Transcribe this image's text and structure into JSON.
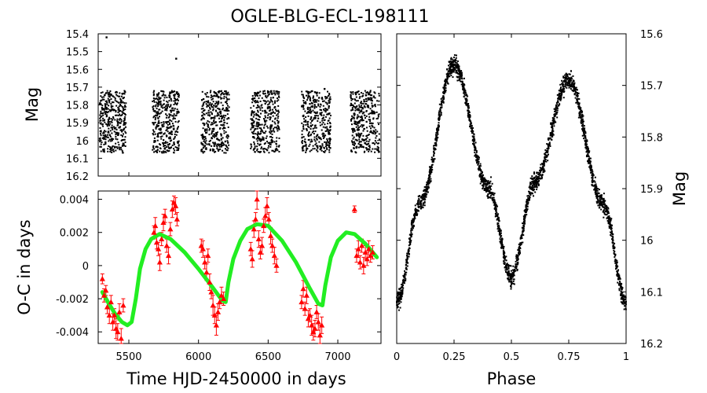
{
  "title": "OGLE-BLG-ECL-198111",
  "colors": {
    "photometry": "#000000",
    "oc_points": "#ff0000",
    "oc_model": "#22ee22",
    "frame": "#000000"
  },
  "chart_data": [
    {
      "type": "scatter",
      "id": "light_curve_time",
      "xlabel": "",
      "ylabel": "Mag",
      "xlim": [
        5280,
        7310
      ],
      "ylim": [
        16.2,
        15.4
      ],
      "y_inverted": true,
      "x_tick_labels": [],
      "y_tick_labels": [
        "15.4",
        "15.5",
        "15.6",
        "15.7",
        "15.8",
        "15.9",
        "16",
        "16.1",
        "16.2"
      ],
      "grid": false,
      "marker": "small black dots",
      "seasons": [
        {
          "start": 5290,
          "end": 5480
        },
        {
          "start": 5670,
          "end": 5860
        },
        {
          "start": 6020,
          "end": 6220
        },
        {
          "start": 6375,
          "end": 6580
        },
        {
          "start": 6740,
          "end": 6950
        },
        {
          "start": 7090,
          "end": 7300
        }
      ],
      "magnitude_range": [
        15.72,
        16.07
      ],
      "outliers": [
        {
          "x": 5340,
          "y": 15.42
        },
        {
          "x": 5840,
          "y": 15.54
        },
        {
          "x": 6395,
          "y": 15.98
        },
        {
          "x": 6905,
          "y": 15.71
        }
      ]
    },
    {
      "type": "scatter",
      "id": "o_minus_c",
      "xlabel": "Time HJD-2450000 in days",
      "ylabel": "O-C in days",
      "xlim": [
        5280,
        7310
      ],
      "ylim": [
        -0.0047,
        0.0045
      ],
      "x_tick_labels": [
        "5500",
        "6000",
        "6500",
        "7000"
      ],
      "y_tick_labels": [
        "0.004",
        "0.002",
        "0",
        "-0.002",
        "-0.004"
      ],
      "grid": false,
      "series": [
        {
          "style": "red triangles with error bars",
          "points": [
            {
              "x": 5310,
              "y": -0.0008,
              "err": 0.0003
            },
            {
              "x": 5322,
              "y": -0.0018,
              "err": 0.0004
            },
            {
              "x": 5335,
              "y": -0.0015,
              "err": 0.0003
            },
            {
              "x": 5345,
              "y": -0.0025,
              "err": 0.0004
            },
            {
              "x": 5360,
              "y": -0.003,
              "err": 0.0005
            },
            {
              "x": 5372,
              "y": -0.0022,
              "err": 0.0004
            },
            {
              "x": 5385,
              "y": -0.0034,
              "err": 0.0005
            },
            {
              "x": 5396,
              "y": -0.003,
              "err": 0.0004
            },
            {
              "x": 5408,
              "y": -0.0038,
              "err": 0.0006
            },
            {
              "x": 5420,
              "y": -0.004,
              "err": 0.0005
            },
            {
              "x": 5432,
              "y": -0.0028,
              "err": 0.0005
            },
            {
              "x": 5445,
              "y": -0.0044,
              "err": 0.0006
            },
            {
              "x": 5460,
              "y": -0.0024,
              "err": 0.0004
            },
            {
              "x": 5680,
              "y": 0.002,
              "err": 0.0004
            },
            {
              "x": 5690,
              "y": 0.0024,
              "err": 0.0005
            },
            {
              "x": 5700,
              "y": 0.0014,
              "err": 0.0004
            },
            {
              "x": 5712,
              "y": 0.001,
              "err": 0.0004
            },
            {
              "x": 5722,
              "y": 0.0002,
              "err": 0.0005
            },
            {
              "x": 5735,
              "y": 0.0016,
              "err": 0.0004
            },
            {
              "x": 5748,
              "y": 0.0026,
              "err": 0.0005
            },
            {
              "x": 5760,
              "y": 0.003,
              "err": 0.0004
            },
            {
              "x": 5772,
              "y": 0.0012,
              "err": 0.0004
            },
            {
              "x": 5785,
              "y": 0.0006,
              "err": 0.0005
            },
            {
              "x": 5798,
              "y": 0.0022,
              "err": 0.0004
            },
            {
              "x": 5812,
              "y": 0.0034,
              "err": 0.0005
            },
            {
              "x": 5824,
              "y": 0.0038,
              "err": 0.0004
            },
            {
              "x": 5836,
              "y": 0.0036,
              "err": 0.0005
            },
            {
              "x": 5846,
              "y": 0.0028,
              "err": 0.0004
            },
            {
              "x": 6020,
              "y": 0.0012,
              "err": 0.0004
            },
            {
              "x": 6032,
              "y": 0.001,
              "err": 0.0005
            },
            {
              "x": 6045,
              "y": 0.0002,
              "err": 0.0004
            },
            {
              "x": 6058,
              "y": -0.0004,
              "err": 0.0005
            },
            {
              "x": 6068,
              "y": 0.0006,
              "err": 0.0004
            },
            {
              "x": 6080,
              "y": -0.001,
              "err": 0.0005
            },
            {
              "x": 6092,
              "y": -0.0016,
              "err": 0.0004
            },
            {
              "x": 6104,
              "y": -0.0024,
              "err": 0.0006
            },
            {
              "x": 6116,
              "y": -0.003,
              "err": 0.0005
            },
            {
              "x": 6128,
              "y": -0.0036,
              "err": 0.0006
            },
            {
              "x": 6140,
              "y": -0.0028,
              "err": 0.0005
            },
            {
              "x": 6152,
              "y": -0.0022,
              "err": 0.0004
            },
            {
              "x": 6165,
              "y": -0.0018,
              "err": 0.0005
            },
            {
              "x": 6180,
              "y": -0.002,
              "err": 0.0004
            },
            {
              "x": 6375,
              "y": 0.001,
              "err": 0.0004
            },
            {
              "x": 6386,
              "y": 0.0004,
              "err": 0.0005
            },
            {
              "x": 6398,
              "y": 0.0022,
              "err": 0.0005
            },
            {
              "x": 6410,
              "y": 0.0028,
              "err": 0.0004
            },
            {
              "x": 6420,
              "y": 0.004,
              "err": 0.0006
            },
            {
              "x": 6432,
              "y": 0.0016,
              "err": 0.0005
            },
            {
              "x": 6444,
              "y": 0.0008,
              "err": 0.0004
            },
            {
              "x": 6456,
              "y": 0.0012,
              "err": 0.0005
            },
            {
              "x": 6468,
              "y": 0.0024,
              "err": 0.0004
            },
            {
              "x": 6480,
              "y": 0.003,
              "err": 0.0005
            },
            {
              "x": 6492,
              "y": 0.0036,
              "err": 0.0005
            },
            {
              "x": 6505,
              "y": 0.0028,
              "err": 0.0004
            },
            {
              "x": 6518,
              "y": 0.0018,
              "err": 0.0005
            },
            {
              "x": 6530,
              "y": 0.0012,
              "err": 0.0004
            },
            {
              "x": 6545,
              "y": 0.0006,
              "err": 0.0005
            },
            {
              "x": 6560,
              "y": 0.0,
              "err": 0.0004
            },
            {
              "x": 6740,
              "y": -0.0022,
              "err": 0.0004
            },
            {
              "x": 6752,
              "y": -0.0014,
              "err": 0.0005
            },
            {
              "x": 6764,
              "y": -0.0026,
              "err": 0.0004
            },
            {
              "x": 6776,
              "y": -0.0018,
              "err": 0.0005
            },
            {
              "x": 6788,
              "y": -0.0032,
              "err": 0.0005
            },
            {
              "x": 6800,
              "y": -0.003,
              "err": 0.0004
            },
            {
              "x": 6812,
              "y": -0.0036,
              "err": 0.0006
            },
            {
              "x": 6824,
              "y": -0.004,
              "err": 0.0005
            },
            {
              "x": 6836,
              "y": -0.0038,
              "err": 0.0005
            },
            {
              "x": 6848,
              "y": -0.0028,
              "err": 0.0004
            },
            {
              "x": 6860,
              "y": -0.0034,
              "err": 0.0005
            },
            {
              "x": 6872,
              "y": -0.0042,
              "err": 0.0006
            },
            {
              "x": 6885,
              "y": -0.0036,
              "err": 0.0005
            },
            {
              "x": 7120,
              "y": 0.0034,
              "err": 0.0002
            },
            {
              "x": 7135,
              "y": 0.0006,
              "err": 0.0004
            },
            {
              "x": 7148,
              "y": 0.001,
              "err": 0.0005
            },
            {
              "x": 7160,
              "y": 0.0002,
              "err": 0.0004
            },
            {
              "x": 7172,
              "y": 0.0012,
              "err": 0.0004
            },
            {
              "x": 7185,
              "y": 0.0,
              "err": 0.0005
            },
            {
              "x": 7198,
              "y": 0.0008,
              "err": 0.0004
            },
            {
              "x": 7210,
              "y": 0.0004,
              "err": 0.0004
            },
            {
              "x": 7222,
              "y": 0.001,
              "err": 0.0005
            },
            {
              "x": 7235,
              "y": 0.0006,
              "err": 0.0004
            },
            {
              "x": 7250,
              "y": 0.0008,
              "err": 0.0004
            }
          ]
        },
        {
          "style": "green model curve (light-travel-time orbit)",
          "points": [
            {
              "x": 5310,
              "y": -0.0016
            },
            {
              "x": 5350,
              "y": -0.0022
            },
            {
              "x": 5400,
              "y": -0.0029
            },
            {
              "x": 5450,
              "y": -0.0034
            },
            {
              "x": 5490,
              "y": -0.0036
            },
            {
              "x": 5520,
              "y": -0.0034
            },
            {
              "x": 5550,
              "y": -0.002
            },
            {
              "x": 5580,
              "y": -0.0002
            },
            {
              "x": 5620,
              "y": 0.001
            },
            {
              "x": 5660,
              "y": 0.0016
            },
            {
              "x": 5720,
              "y": 0.0019
            },
            {
              "x": 5800,
              "y": 0.0016
            },
            {
              "x": 5900,
              "y": 0.0008
            },
            {
              "x": 6000,
              "y": -0.0002
            },
            {
              "x": 6100,
              "y": -0.0013
            },
            {
              "x": 6170,
              "y": -0.0021
            },
            {
              "x": 6195,
              "y": -0.0022
            },
            {
              "x": 6215,
              "y": -0.001
            },
            {
              "x": 6250,
              "y": 0.0004
            },
            {
              "x": 6300,
              "y": 0.0015
            },
            {
              "x": 6350,
              "y": 0.0022
            },
            {
              "x": 6420,
              "y": 0.0025
            },
            {
              "x": 6500,
              "y": 0.0024
            },
            {
              "x": 6600,
              "y": 0.0015
            },
            {
              "x": 6700,
              "y": 0.0002
            },
            {
              "x": 6800,
              "y": -0.0014
            },
            {
              "x": 6860,
              "y": -0.0023
            },
            {
              "x": 6890,
              "y": -0.0024
            },
            {
              "x": 6910,
              "y": -0.0012
            },
            {
              "x": 6950,
              "y": 0.0005
            },
            {
              "x": 7000,
              "y": 0.0015
            },
            {
              "x": 7060,
              "y": 0.002
            },
            {
              "x": 7120,
              "y": 0.0019
            },
            {
              "x": 7200,
              "y": 0.0013
            },
            {
              "x": 7280,
              "y": 0.0005
            }
          ]
        }
      ]
    },
    {
      "type": "scatter",
      "id": "phased_light_curve",
      "xlabel": "Phase",
      "ylabel": "Mag",
      "xlim": [
        0,
        1
      ],
      "ylim": [
        16.2,
        15.6
      ],
      "y_inverted": true,
      "x_tick_labels": [
        "0",
        "0.25",
        "0.5",
        "0.75",
        "1"
      ],
      "y_tick_labels": [
        "15.6",
        "15.7",
        "15.8",
        "15.9",
        "16",
        "16.1",
        "16.2"
      ],
      "grid": false,
      "marker": "small black dots",
      "envelope": [
        {
          "phase": 0.0,
          "mag": 16.12
        },
        {
          "phase": 0.1,
          "mag": 15.93
        },
        {
          "phase": 0.25,
          "mag": 15.66
        },
        {
          "phase": 0.4,
          "mag": 15.9
        },
        {
          "phase": 0.5,
          "mag": 16.07
        },
        {
          "phase": 0.6,
          "mag": 15.89
        },
        {
          "phase": 0.75,
          "mag": 15.69
        },
        {
          "phase": 0.9,
          "mag": 15.93
        },
        {
          "phase": 1.0,
          "mag": 16.12
        }
      ],
      "scatter_width_mag": 0.035
    }
  ]
}
